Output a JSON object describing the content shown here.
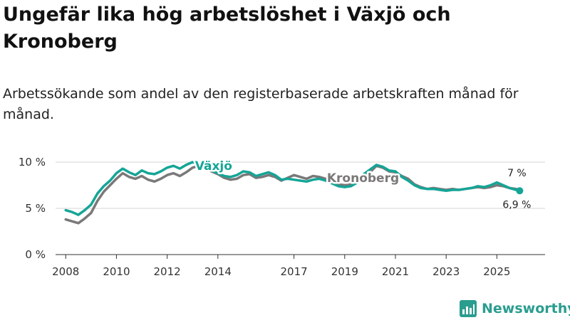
{
  "title": "Ungefär lika hög arbetslöshet i Växjö och Kronoberg",
  "subtitle": "Arbetssökande som andel av den registerbaserade arbetskraften månad för månad.",
  "brand": "Newsworthy",
  "colors": {
    "vaxjo": "#15a597",
    "kronoberg": "#7a7878",
    "grid": "#d6d6d6",
    "axis": "#333333",
    "brand": "#2a9d8f"
  },
  "chart_data": {
    "type": "line",
    "xlim": [
      2007.6,
      2026.9
    ],
    "ylim": [
      0,
      10
    ],
    "y_ticks": [
      0,
      5,
      10
    ],
    "y_tick_labels": [
      "0 %",
      "5 %",
      "10 %"
    ],
    "x_ticks": [
      2008,
      2010,
      2012,
      2014,
      2017,
      2019,
      2021,
      2023,
      2025
    ],
    "x_tick_labels": [
      "2008",
      "2010",
      "2012",
      "2014",
      "2017",
      "2019",
      "2021",
      "2023",
      "2025"
    ],
    "grid": true,
    "series": [
      {
        "name": "Kronoberg",
        "label": "Kronoberg",
        "x": [
          2008.0,
          2008.25,
          2008.5,
          2008.75,
          2009.0,
          2009.25,
          2009.5,
          2009.75,
          2010.0,
          2010.25,
          2010.5,
          2010.75,
          2011.0,
          2011.25,
          2011.5,
          2011.75,
          2012.0,
          2012.25,
          2012.5,
          2012.75,
          2013.0,
          2013.25,
          2013.5,
          2013.75,
          2014.0,
          2014.25,
          2014.5,
          2014.75,
          2015.0,
          2015.25,
          2015.5,
          2015.75,
          2016.0,
          2016.25,
          2016.5,
          2016.75,
          2017.0,
          2017.25,
          2017.5,
          2017.75,
          2018.0,
          2018.25,
          2018.5,
          2018.75,
          2019.0,
          2019.25,
          2019.5,
          2019.75,
          2020.0,
          2020.25,
          2020.5,
          2020.75,
          2021.0,
          2021.25,
          2021.5,
          2021.75,
          2022.0,
          2022.25,
          2022.5,
          2022.75,
          2023.0,
          2023.25,
          2023.5,
          2023.75,
          2024.0,
          2024.25,
          2024.5,
          2024.75,
          2025.0,
          2025.25,
          2025.5,
          2025.75,
          2025.9
        ],
        "values": [
          3.8,
          3.6,
          3.4,
          3.9,
          4.5,
          5.8,
          6.8,
          7.5,
          8.2,
          8.8,
          8.4,
          8.2,
          8.5,
          8.1,
          7.9,
          8.2,
          8.6,
          8.8,
          8.5,
          8.9,
          9.4,
          9.6,
          9.3,
          9.0,
          8.7,
          8.3,
          8.1,
          8.2,
          8.6,
          8.7,
          8.3,
          8.4,
          8.6,
          8.4,
          8.0,
          8.3,
          8.6,
          8.4,
          8.2,
          8.5,
          8.4,
          8.2,
          7.9,
          7.6,
          7.5,
          7.6,
          8.0,
          8.6,
          8.9,
          9.6,
          9.4,
          9.0,
          8.9,
          8.5,
          8.2,
          7.6,
          7.3,
          7.1,
          7.2,
          7.1,
          7.0,
          7.1,
          7.0,
          7.1,
          7.2,
          7.3,
          7.2,
          7.3,
          7.5,
          7.4,
          7.2,
          7.1,
          7.0
        ],
        "end_label": "7 %"
      },
      {
        "name": "Växjö",
        "label": "Växjö",
        "x": [
          2008.0,
          2008.25,
          2008.5,
          2008.75,
          2009.0,
          2009.25,
          2009.5,
          2009.75,
          2010.0,
          2010.25,
          2010.5,
          2010.75,
          2011.0,
          2011.25,
          2011.5,
          2011.75,
          2012.0,
          2012.25,
          2012.5,
          2012.75,
          2013.0,
          2013.25,
          2013.5,
          2013.75,
          2014.0,
          2014.25,
          2014.5,
          2014.75,
          2015.0,
          2015.25,
          2015.5,
          2015.75,
          2016.0,
          2016.25,
          2016.5,
          2016.75,
          2017.0,
          2017.25,
          2017.5,
          2017.75,
          2018.0,
          2018.25,
          2018.5,
          2018.75,
          2019.0,
          2019.25,
          2019.5,
          2019.75,
          2020.0,
          2020.25,
          2020.5,
          2020.75,
          2021.0,
          2021.25,
          2021.5,
          2021.75,
          2022.0,
          2022.25,
          2022.5,
          2022.75,
          2023.0,
          2023.25,
          2023.5,
          2023.75,
          2024.0,
          2024.25,
          2024.5,
          2024.75,
          2025.0,
          2025.25,
          2025.5,
          2025.75,
          2025.9
        ],
        "values": [
          4.8,
          4.6,
          4.3,
          4.8,
          5.4,
          6.6,
          7.4,
          8.0,
          8.8,
          9.3,
          8.9,
          8.6,
          9.1,
          8.8,
          8.7,
          9.0,
          9.4,
          9.6,
          9.3,
          9.7,
          10.0,
          9.8,
          9.5,
          9.1,
          8.8,
          8.5,
          8.4,
          8.6,
          9.0,
          8.9,
          8.5,
          8.7,
          8.9,
          8.6,
          8.1,
          8.2,
          8.1,
          8.0,
          7.9,
          8.1,
          8.2,
          8.0,
          7.7,
          7.4,
          7.3,
          7.4,
          7.8,
          8.7,
          9.2,
          9.7,
          9.5,
          9.1,
          9.0,
          8.4,
          8.0,
          7.5,
          7.2,
          7.1,
          7.1,
          7.0,
          6.9,
          7.0,
          7.0,
          7.1,
          7.2,
          7.4,
          7.3,
          7.5,
          7.8,
          7.5,
          7.2,
          7.0,
          6.9
        ],
        "end_label": "6,9 %"
      }
    ]
  }
}
